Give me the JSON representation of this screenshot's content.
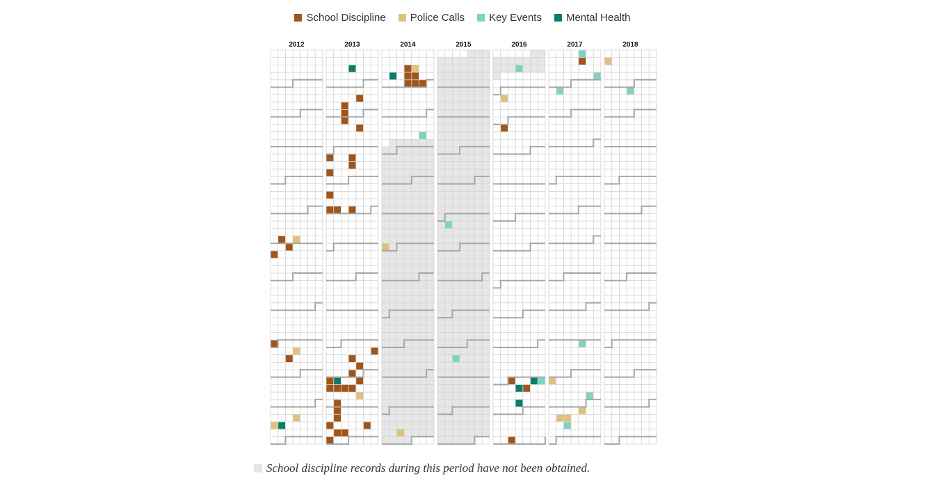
{
  "legend": [
    {
      "label": "School Discipline",
      "key": "discipline",
      "color": "#a0561a"
    },
    {
      "label": "Police Calls",
      "key": "police",
      "color": "#dfc07e"
    },
    {
      "label": "Key Events",
      "key": "key",
      "color": "#84d0c4"
    },
    {
      "label": "Mental Health",
      "key": "mental",
      "color": "#0b7d6a"
    }
  ],
  "note": "School discipline records during this period have not been obtained.",
  "colors": {
    "discipline": "#a0561a",
    "police": "#dfc07e",
    "key": "#84d0c4",
    "mental": "#0b7d6a",
    "unobtained": "#e6e6e6",
    "grid": "#d2d2d2",
    "month_line": "#a6a6a6"
  },
  "chart_data": {
    "type": "heatmap",
    "description_of_layout": "calendar columns",
    "years": [
      "2012",
      "2013",
      "2014",
      "2015",
      "2016",
      "2017",
      "2018"
    ],
    "weekdays_per_row": 7,
    "weeks_per_year": 53,
    "unobtained_periods": [
      [
        "2014-03-24",
        "2016-01-17"
      ]
    ],
    "events": [
      {
        "date": "2012-06-25",
        "type": "discipline"
      },
      {
        "date": "2012-06-27",
        "type": "police"
      },
      {
        "date": "2012-07-03",
        "type": "discipline"
      },
      {
        "date": "2012-07-08",
        "type": "discipline"
      },
      {
        "date": "2012-09-30",
        "type": "discipline"
      },
      {
        "date": "2012-10-10",
        "type": "police"
      },
      {
        "date": "2012-10-16",
        "type": "discipline"
      },
      {
        "date": "2012-12-12",
        "type": "police"
      },
      {
        "date": "2012-12-16",
        "type": "police"
      },
      {
        "date": "2012-12-17",
        "type": "mental"
      },
      {
        "date": "2013-01-16",
        "type": "mental"
      },
      {
        "date": "2013-02-14",
        "type": "discipline"
      },
      {
        "date": "2013-02-19",
        "type": "discipline"
      },
      {
        "date": "2013-02-26",
        "type": "discipline"
      },
      {
        "date": "2013-03-05",
        "type": "discipline"
      },
      {
        "date": "2013-03-14",
        "type": "discipline"
      },
      {
        "date": "2013-04-07",
        "type": "discipline"
      },
      {
        "date": "2013-04-10",
        "type": "discipline"
      },
      {
        "date": "2013-04-17",
        "type": "discipline"
      },
      {
        "date": "2013-04-21",
        "type": "discipline"
      },
      {
        "date": "2013-05-12",
        "type": "discipline"
      },
      {
        "date": "2013-05-26",
        "type": "discipline"
      },
      {
        "date": "2013-05-27",
        "type": "discipline"
      },
      {
        "date": "2013-05-29",
        "type": "discipline"
      },
      {
        "date": "2013-10-12",
        "type": "discipline"
      },
      {
        "date": "2013-10-16",
        "type": "discipline"
      },
      {
        "date": "2013-10-24",
        "type": "discipline"
      },
      {
        "date": "2013-10-30",
        "type": "discipline"
      },
      {
        "date": "2013-11-03",
        "type": "discipline"
      },
      {
        "date": "2013-11-07",
        "type": "discipline"
      },
      {
        "date": "2013-11-04",
        "type": "mental"
      },
      {
        "date": "2013-11-10",
        "type": "discipline"
      },
      {
        "date": "2013-11-11",
        "type": "discipline"
      },
      {
        "date": "2013-11-12",
        "type": "discipline"
      },
      {
        "date": "2013-11-13",
        "type": "discipline"
      },
      {
        "date": "2013-11-21",
        "type": "police"
      },
      {
        "date": "2013-11-25",
        "type": "discipline"
      },
      {
        "date": "2013-12-02",
        "type": "discipline"
      },
      {
        "date": "2013-12-09",
        "type": "discipline"
      },
      {
        "date": "2013-12-15",
        "type": "discipline"
      },
      {
        "date": "2013-12-20",
        "type": "discipline"
      },
      {
        "date": "2013-12-23",
        "type": "discipline"
      },
      {
        "date": "2013-12-24",
        "type": "discipline"
      },
      {
        "date": "2013-12-29",
        "type": "discipline"
      },
      {
        "date": "2014-01-15",
        "type": "discipline"
      },
      {
        "date": "2014-01-22",
        "type": "discipline"
      },
      {
        "date": "2014-01-23",
        "type": "discipline"
      },
      {
        "date": "2014-01-29",
        "type": "discipline"
      },
      {
        "date": "2014-01-16",
        "type": "police"
      },
      {
        "date": "2014-01-20",
        "type": "mental"
      },
      {
        "date": "2014-01-30",
        "type": "discipline"
      },
      {
        "date": "2014-01-31",
        "type": "discipline"
      },
      {
        "date": "2014-03-21",
        "type": "key"
      },
      {
        "date": "2014-06-29",
        "type": "police"
      },
      {
        "date": "2014-12-23",
        "type": "police"
      },
      {
        "date": "2015-06-08",
        "type": "key"
      },
      {
        "date": "2015-10-13",
        "type": "key"
      },
      {
        "date": "2016-01-13",
        "type": "key"
      },
      {
        "date": "2016-02-08",
        "type": "police"
      },
      {
        "date": "2016-03-07",
        "type": "discipline"
      },
      {
        "date": "2016-11-01",
        "type": "discipline"
      },
      {
        "date": "2016-11-04",
        "type": "mental"
      },
      {
        "date": "2016-11-05",
        "type": "key"
      },
      {
        "date": "2016-11-09",
        "type": "mental"
      },
      {
        "date": "2016-11-10",
        "type": "discipline"
      },
      {
        "date": "2016-11-23",
        "type": "mental"
      },
      {
        "date": "2016-12-27",
        "type": "discipline"
      },
      {
        "date": "2017-01-05",
        "type": "key"
      },
      {
        "date": "2017-01-12",
        "type": "discipline"
      },
      {
        "date": "2017-01-28",
        "type": "key"
      },
      {
        "date": "2017-02-06",
        "type": "key"
      },
      {
        "date": "2017-10-05",
        "type": "key"
      },
      {
        "date": "2017-11-05",
        "type": "police"
      },
      {
        "date": "2017-11-24",
        "type": "key"
      },
      {
        "date": "2017-12-07",
        "type": "police"
      },
      {
        "date": "2017-12-11",
        "type": "police"
      },
      {
        "date": "2017-12-12",
        "type": "police"
      },
      {
        "date": "2017-12-19",
        "type": "key"
      },
      {
        "date": "2018-01-07",
        "type": "police"
      },
      {
        "date": "2018-02-07",
        "type": "key"
      }
    ]
  }
}
